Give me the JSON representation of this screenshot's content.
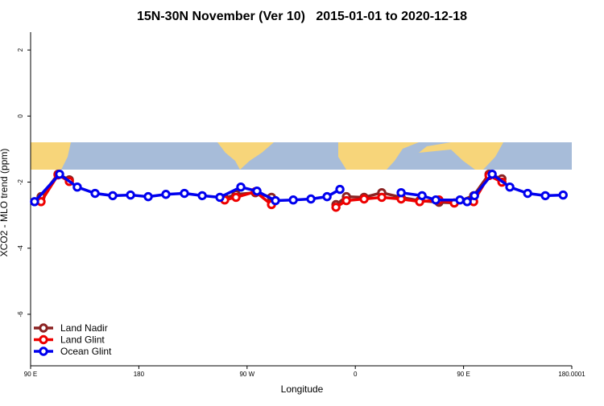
{
  "chart_data": {
    "type": "line",
    "title": "15N-30N November (Ver 10)   2015-01-01 to 2020-12-18",
    "x_label": "Longitude",
    "y_label": "XCO2 - MLO trend (ppm)",
    "xlim": [
      90,
      540
    ],
    "xticks": [
      {
        "value": 90,
        "label": "90 E"
      },
      180,
      {
        "value": 270,
        "label": "90 W"
      },
      {
        "value": 360,
        "label": "0"
      },
      {
        "value": 450,
        "label": "90 E"
      },
      180.0001
    ],
    "ylim": [
      -7.56,
      2.54
    ],
    "yticks": [
      -6,
      -4,
      -2,
      0,
      2
    ],
    "legend": "bottom-left",
    "series": [
      {
        "name": "Land Nadir",
        "color": "#8b2323",
        "x": [
          98.7,
          112.8,
          122.2,
          190,
          251.4,
          260.8,
          276.9,
          290.3,
          320,
          343.9,
          352.6,
          367.3,
          382.0,
          398.1,
          413.5,
          429.6,
          442.3,
          458.4,
          471.2,
          481.9
        ],
        "values": [
          -2.44,
          -1.76,
          -1.93,
          null,
          -2.49,
          -2.37,
          -2.32,
          -2.46,
          null,
          -2.68,
          -2.44,
          -2.46,
          -2.32,
          -2.46,
          -2.56,
          -2.61,
          -2.63,
          -2.41,
          -1.76,
          -1.9
        ]
      },
      {
        "name": "Land Glint",
        "color": "#ee0000",
        "x": [
          98.7,
          112.8,
          122.2,
          190,
          251.4,
          260.8,
          276.9,
          290.3,
          320,
          343.9,
          352.6,
          367.3,
          382.0,
          398.1,
          413.5,
          429.6,
          442.3,
          458.4,
          471.2,
          481.9
        ],
        "values": [
          -2.59,
          -1.78,
          -1.98,
          null,
          -2.54,
          -2.46,
          -2.29,
          -2.68,
          null,
          -2.76,
          -2.56,
          -2.51,
          -2.46,
          -2.51,
          -2.59,
          -2.54,
          -2.63,
          -2.59,
          -1.8,
          -2.0
        ]
      },
      {
        "name": "Ocean Glint",
        "color": "#0000ee",
        "x": [
          93.3,
          114.1,
          128.8,
          143.6,
          158.3,
          173.1,
          187.8,
          202.5,
          217.9,
          232.7,
          247.4,
          264.8,
          278.2,
          293.6,
          308.4,
          323.1,
          336.5,
          347.2,
          370,
          398.1,
          415.5,
          426.9,
          447.0,
          453.0,
          459.1,
          473.8,
          488.5,
          503.3,
          518.0,
          532.8
        ],
        "values": [
          -2.59,
          -1.76,
          -2.15,
          -2.34,
          -2.41,
          -2.39,
          -2.44,
          -2.37,
          -2.34,
          -2.41,
          -2.46,
          -2.15,
          -2.27,
          -2.56,
          -2.54,
          -2.51,
          -2.44,
          -2.22,
          null,
          -2.32,
          -2.41,
          -2.54,
          -2.54,
          -2.59,
          -2.41,
          -1.76,
          -2.15,
          -2.34,
          -2.41,
          -2.39
        ]
      }
    ]
  }
}
